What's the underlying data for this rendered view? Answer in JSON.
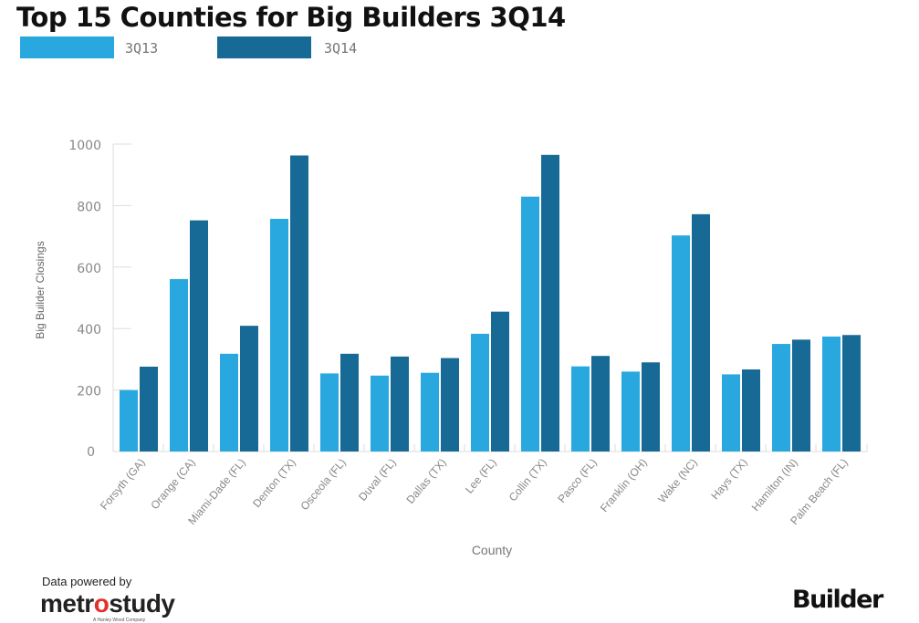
{
  "chart_data": {
    "type": "bar",
    "title": "Top 15 Counties for Big Builders 3Q14",
    "xlabel": "County",
    "ylabel": "Big Builder Closings",
    "ylim": [
      0,
      1000
    ],
    "yticks": [
      0,
      200,
      400,
      600,
      800,
      1000
    ],
    "grid": false,
    "legend_position": "top-left",
    "categories": [
      "Forsyth (GA)",
      "Orange (CA)",
      "Miami-Dade (FL)",
      "Denton (TX)",
      "Osceola (FL)",
      "Duval (FL)",
      "Dallas (TX)",
      "Lee (FL)",
      "Collin (TX)",
      "Pasco (FL)",
      "Franklin (OH)",
      "Wake (NC)",
      "Hays (TX)",
      "Hamilton (IN)",
      "Palm Beach (FL)"
    ],
    "series": [
      {
        "name": "3Q13",
        "color": "#29a8e0",
        "values": [
          200,
          561,
          318,
          757,
          254,
          247,
          256,
          383,
          829,
          277,
          260,
          703,
          251,
          350,
          374
        ]
      },
      {
        "name": "3Q14",
        "color": "#176a96",
        "values": [
          276,
          752,
          409,
          963,
          318,
          309,
          304,
          455,
          965,
          311,
          290,
          772,
          267,
          364,
          379
        ]
      }
    ]
  },
  "footer": {
    "credit": "Data powered by",
    "metrostudy_logo": "metrostudy",
    "metrostudy_sub": "A Hanley Wood Company",
    "builder_logo": "Builder"
  }
}
